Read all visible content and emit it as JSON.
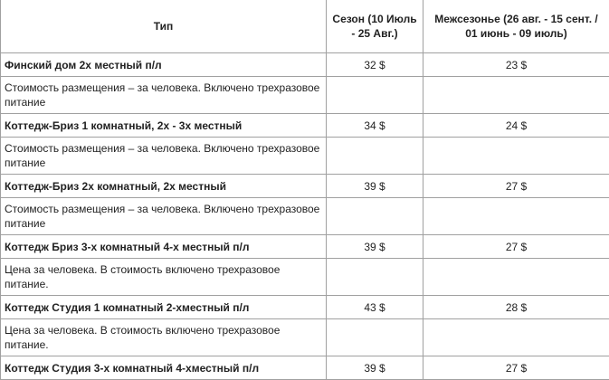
{
  "headers": [
    "Тип",
    "Сезон (10 Июль - 25 Авг.)",
    "Межсезонье (26 авг. - 15 сент. / 01 июнь - 09 июль)"
  ],
  "rows": [
    {
      "type": "Финский дом 2х местный п/л",
      "season": "32 $",
      "offseason": "23 $",
      "note": "Стоимость размещения – за человека. Включено трехразовое питание"
    },
    {
      "type": "Коттедж-Бриз 1 комнатный, 2х - 3х местный",
      "season": "34 $",
      "offseason": "24 $",
      "note": "Стоимость размещения – за человека. Включено трехразовое питание"
    },
    {
      "type": "Коттедж-Бриз 2х комнатный, 2х местный",
      "season": "39 $",
      "offseason": "27 $",
      "note": "Стоимость размещения – за человека. Включено трехразовое питание"
    },
    {
      "type": "Коттедж Бриз 3-х комнатный 4-х местный п/л",
      "season": "39 $",
      "offseason": "27 $",
      "note": "Цена за человека. В стоимость включено трехразовое питание."
    },
    {
      "type": "Коттедж Студия 1 комнатный 2-хместный п/л",
      "season": "43 $",
      "offseason": "28 $",
      "note": "Цена за человека. В стоимость включено трехразовое питание."
    },
    {
      "type": "Коттедж Студия 3-х комнатный 4-хместный п/л",
      "season": "39 $",
      "offseason": "27 $"
    }
  ]
}
